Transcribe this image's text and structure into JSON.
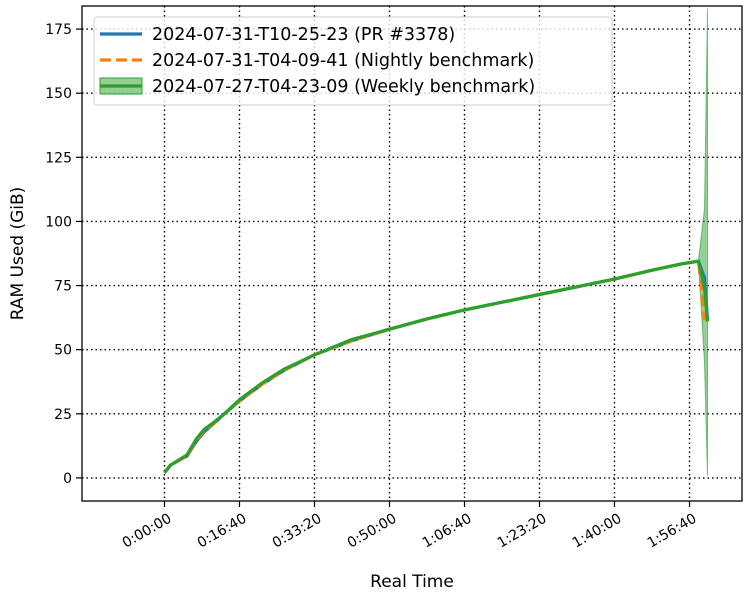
{
  "chart_data": {
    "type": "line",
    "xlabel": "Real Time",
    "ylabel": "RAM Used (GiB)",
    "xlim": [
      -1100,
      7700
    ],
    "ylim": [
      -9,
      184
    ],
    "x_ticks": [
      0,
      1000,
      2000,
      3000,
      4000,
      5000,
      6000,
      7000
    ],
    "x_tick_labels": [
      "0:00:00",
      "0:16:40",
      "0:33:20",
      "0:50:00",
      "1:06:40",
      "1:23:20",
      "1:40:00",
      "1:56:40"
    ],
    "y_ticks": [
      0,
      25,
      50,
      75,
      100,
      125,
      150,
      175
    ],
    "y_tick_labels": [
      "0",
      "25",
      "50",
      "75",
      "100",
      "125",
      "150",
      "175"
    ],
    "grid": true,
    "legend_position": "top-left",
    "series": [
      {
        "name": "2024-07-31-T10-25-23 (PR #3378)",
        "color": "#1f77b4",
        "style": "solid",
        "x": [
          0,
          80,
          300,
          420,
          530,
          650,
          800,
          1000,
          1300,
          1600,
          2000,
          2500,
          3000,
          3500,
          4000,
          4500,
          5000,
          5500,
          6000,
          6500,
          6900,
          7120,
          7200,
          7240
        ],
        "y": [
          2,
          5,
          8.5,
          14,
          18,
          21,
          25,
          30,
          36.5,
          42,
          48,
          53.5,
          58,
          62,
          65.5,
          68.5,
          71.5,
          74.5,
          77.5,
          81,
          83.5,
          84.5,
          78,
          62
        ]
      },
      {
        "name": "2024-07-31-T04-09-41 (Nightly benchmark)",
        "color": "#ff7f0e",
        "style": "dashed",
        "x": [
          0,
          80,
          300,
          420,
          530,
          650,
          800,
          1000,
          1300,
          1600,
          2000,
          2500,
          3000,
          3500,
          4000,
          4500,
          5000,
          5500,
          6000,
          6500,
          6900,
          7120,
          7200,
          7240
        ],
        "y": [
          2,
          5,
          8.5,
          14.5,
          18.5,
          21,
          25,
          30,
          36.5,
          42,
          48,
          53.5,
          58,
          62,
          65.5,
          68.5,
          71.5,
          74.5,
          77.5,
          81,
          83.5,
          84.5,
          62,
          63
        ]
      },
      {
        "name": "2024-07-27-T04-23-09 (Weekly benchmark)",
        "color": "#2ca02c",
        "style": "solid-with-band",
        "x": [
          0,
          80,
          300,
          420,
          530,
          650,
          800,
          1000,
          1300,
          1600,
          2000,
          2500,
          3000,
          3500,
          4000,
          4500,
          5000,
          5500,
          6000,
          6500,
          6900,
          7120,
          7200,
          7240
        ],
        "y": [
          2,
          5,
          9,
          15,
          19,
          21.5,
          25,
          30.5,
          37,
          42.5,
          48,
          54,
          58,
          62,
          65.5,
          68.5,
          71.5,
          74.5,
          77.5,
          81,
          83.5,
          84.5,
          74,
          61
        ],
        "band_lower": [
          2,
          5,
          9,
          15,
          19,
          21.5,
          25,
          30.5,
          37,
          42.5,
          48,
          54,
          58,
          62,
          65.5,
          68.5,
          71.5,
          74.5,
          77.5,
          81,
          83.5,
          84,
          45,
          1
        ],
        "band_upper": [
          2,
          5,
          9,
          15,
          19,
          21.5,
          25,
          30.5,
          37,
          42.5,
          48,
          54,
          58,
          62,
          65.5,
          68.5,
          71.5,
          74.5,
          77.5,
          81,
          83.5,
          85,
          105,
          183
        ]
      }
    ]
  }
}
